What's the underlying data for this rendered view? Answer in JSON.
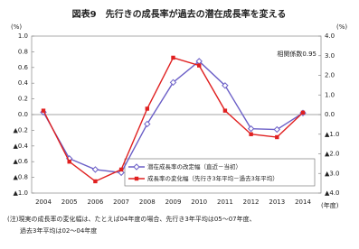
{
  "chart_data": {
    "type": "line",
    "title": "図表9　先行きの成長率が過去の潜在成長率を変える",
    "y_unit": "(%)",
    "y2_unit": "(%)",
    "x_unit": "(年度)",
    "annotation": "相関係数0.95",
    "note": [
      "(注)現実の成長率の変化幅は、たとえば04年度の場合、先行き3年平均は05～07年度、",
      "過去3年平均は02～04年度"
    ],
    "categories": [
      "2004",
      "2005",
      "2006",
      "2007",
      "2008",
      "2009",
      "2010",
      "2011",
      "2012",
      "2013",
      "2014"
    ],
    "series": [
      {
        "name": "潜在成長率の改定幅（直近－当初）",
        "color": "#6b5fc7",
        "marker": "diamond",
        "axis": "y",
        "values": [
          0.03,
          -0.56,
          -0.7,
          -0.74,
          -0.12,
          0.41,
          0.68,
          0.37,
          -0.18,
          -0.19,
          0.02
        ]
      },
      {
        "name": "成長率の変化幅（先行き3年平均－過去3年平均）",
        "color": "#e02020",
        "marker": "square",
        "axis": "y2",
        "values": [
          0.2,
          -2.4,
          -3.4,
          -2.8,
          0.3,
          2.9,
          2.5,
          0.2,
          -1.0,
          -1.15,
          0.1
        ]
      }
    ],
    "ylim": [
      -1.0,
      1.0
    ],
    "yticks": [
      {
        "value": 1.0,
        "label": "1.0"
      },
      0.8,
      0.6,
      0.4,
      0.2,
      {
        "value": 0,
        "label": "0.0"
      },
      {
        "value": -0.2,
        "label": "▲0.2"
      },
      {
        "value": -0.4,
        "label": "▲0.4"
      },
      {
        "value": -0.6,
        "label": "▲0.6"
      },
      {
        "value": -0.8,
        "label": "▲0.8"
      },
      {
        "value": -1.0,
        "label": "▲1.0"
      }
    ],
    "y2lim": [
      -4.0,
      4.0
    ],
    "y2ticks": [
      {
        "value": 4,
        "label": "4.0"
      },
      {
        "value": 3,
        "label": "3.0"
      },
      {
        "value": 2,
        "label": "2.0"
      },
      {
        "value": 1,
        "label": "1.0"
      },
      {
        "value": 0,
        "label": "0.0"
      },
      {
        "value": -1,
        "label": "▲1.0"
      },
      {
        "value": -2,
        "label": "▲2.0"
      },
      {
        "value": -3,
        "label": "▲3.0"
      },
      {
        "value": -4,
        "label": "▲4.0"
      }
    ],
    "legend": "lower-right"
  }
}
